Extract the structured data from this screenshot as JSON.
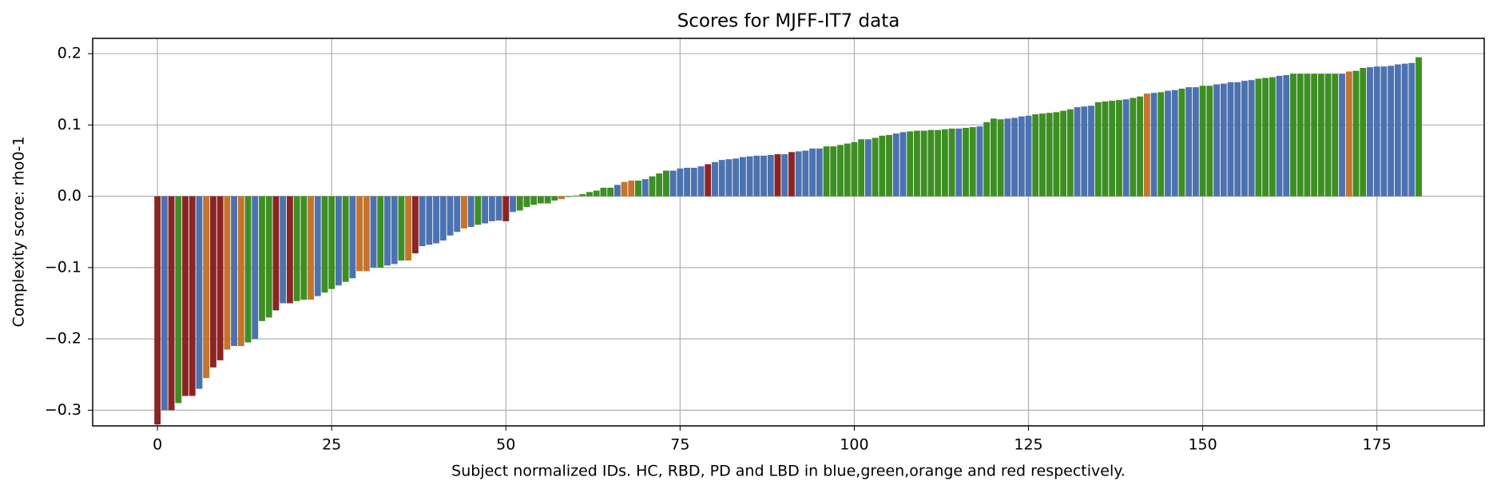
{
  "chart_data": {
    "type": "bar",
    "title": "Scores for MJFF-IT7 data",
    "xlabel": "Subject normalized IDs. HC, RBD, PD and LBD in blue,green,orange and red respectively.",
    "ylabel": "Complexity score: rho0-1",
    "x": [
      0,
      1,
      2,
      3,
      4,
      5,
      6,
      7,
      8,
      9,
      10,
      11,
      12,
      13,
      14,
      15,
      16,
      17,
      18,
      19,
      20,
      21,
      22,
      23,
      24,
      25,
      26,
      27,
      28,
      29,
      30,
      31,
      32,
      33,
      34,
      35,
      36,
      37,
      38,
      39,
      40,
      41,
      42,
      43,
      44,
      45,
      46,
      47,
      48,
      49,
      50,
      51,
      52,
      53,
      54,
      55,
      56,
      57,
      58,
      59,
      60,
      61,
      62,
      63,
      64,
      65,
      66,
      67,
      68,
      69,
      70,
      71,
      72,
      73,
      74,
      75,
      76,
      77,
      78,
      79,
      80,
      81,
      82,
      83,
      84,
      85,
      86,
      87,
      88,
      89,
      90,
      91,
      92,
      93,
      94,
      95,
      96,
      97,
      98,
      99,
      100,
      101,
      102,
      103,
      104,
      105,
      106,
      107,
      108,
      109,
      110,
      111,
      112,
      113,
      114,
      115,
      116,
      117,
      118,
      119,
      120,
      121,
      122,
      123,
      124,
      125,
      126,
      127,
      128,
      129,
      130,
      131,
      132,
      133,
      134,
      135,
      136,
      137,
      138,
      139,
      140,
      141,
      142,
      143,
      144,
      145,
      146,
      147,
      148,
      149,
      150,
      151,
      152,
      153,
      154,
      155,
      156,
      157,
      158,
      159,
      160,
      161,
      162,
      163,
      164,
      165,
      166,
      167,
      168,
      169,
      170,
      171,
      172,
      173,
      174,
      175,
      176,
      177,
      178,
      179,
      180,
      181
    ],
    "values": [
      -0.32,
      -0.3,
      -0.3,
      -0.29,
      -0.28,
      -0.28,
      -0.27,
      -0.255,
      -0.24,
      -0.23,
      -0.215,
      -0.21,
      -0.21,
      -0.205,
      -0.2,
      -0.175,
      -0.17,
      -0.16,
      -0.15,
      -0.15,
      -0.147,
      -0.145,
      -0.145,
      -0.14,
      -0.135,
      -0.13,
      -0.125,
      -0.12,
      -0.115,
      -0.105,
      -0.105,
      -0.1,
      -0.1,
      -0.097,
      -0.095,
      -0.09,
      -0.09,
      -0.08,
      -0.07,
      -0.068,
      -0.066,
      -0.062,
      -0.055,
      -0.05,
      -0.045,
      -0.043,
      -0.04,
      -0.038,
      -0.035,
      -0.034,
      -0.035,
      -0.022,
      -0.02,
      -0.015,
      -0.012,
      -0.01,
      -0.01,
      -0.006,
      -0.004,
      -0.001,
      0.001,
      0.003,
      0.006,
      0.008,
      0.012,
      0.012,
      0.016,
      0.02,
      0.022,
      0.022,
      0.024,
      0.028,
      0.032,
      0.036,
      0.036,
      0.039,
      0.04,
      0.04,
      0.042,
      0.045,
      0.048,
      0.051,
      0.052,
      0.053,
      0.055,
      0.056,
      0.057,
      0.057,
      0.058,
      0.059,
      0.059,
      0.062,
      0.063,
      0.064,
      0.067,
      0.067,
      0.07,
      0.07,
      0.072,
      0.074,
      0.076,
      0.08,
      0.08,
      0.082,
      0.085,
      0.086,
      0.088,
      0.09,
      0.091,
      0.092,
      0.092,
      0.093,
      0.093,
      0.094,
      0.095,
      0.095,
      0.096,
      0.097,
      0.098,
      0.104,
      0.109,
      0.108,
      0.109,
      0.11,
      0.112,
      0.113,
      0.115,
      0.116,
      0.117,
      0.118,
      0.12,
      0.122,
      0.125,
      0.126,
      0.127,
      0.132,
      0.133,
      0.134,
      0.135,
      0.136,
      0.138,
      0.14,
      0.144,
      0.145,
      0.146,
      0.148,
      0.149,
      0.151,
      0.153,
      0.153,
      0.155,
      0.155,
      0.157,
      0.158,
      0.16,
      0.16,
      0.162,
      0.163,
      0.165,
      0.166,
      0.167,
      0.169,
      0.17,
      0.172,
      0.172,
      0.172,
      0.172,
      0.172,
      0.172,
      0.172,
      0.172,
      0.175,
      0.176,
      0.18,
      0.181,
      0.182,
      0.182,
      0.183,
      0.185,
      0.186,
      0.187,
      0.195
    ],
    "colors": [
      "#8b2424",
      "#4c72b0",
      "#8b2424",
      "#3d8f23",
      "#8b2424",
      "#8b2424",
      "#4c72b0",
      "#c4742c",
      "#8b2424",
      "#8b2424",
      "#c4742c",
      "#4c72b0",
      "#c4742c",
      "#3d8f23",
      "#4c72b0",
      "#3d8f23",
      "#3d8f23",
      "#8b2424",
      "#4c72b0",
      "#8b2424",
      "#3d8f23",
      "#3d8f23",
      "#c4742c",
      "#4c72b0",
      "#3d8f23",
      "#3d8f23",
      "#4c72b0",
      "#3d8f23",
      "#4c72b0",
      "#c4742c",
      "#c4742c",
      "#4c72b0",
      "#3d8f23",
      "#4c72b0",
      "#4c72b0",
      "#3d8f23",
      "#c4742c",
      "#8b2424",
      "#4c72b0",
      "#4c72b0",
      "#4c72b0",
      "#4c72b0",
      "#4c72b0",
      "#4c72b0",
      "#c4742c",
      "#4c72b0",
      "#3d8f23",
      "#4c72b0",
      "#4c72b0",
      "#4c72b0",
      "#8b2424",
      "#4c72b0",
      "#3d8f23",
      "#3d8f23",
      "#3d8f23",
      "#3d8f23",
      "#3d8f23",
      "#3d8f23",
      "#c4742c",
      "#3d8f23",
      "#3d8f23",
      "#3d8f23",
      "#3d8f23",
      "#3d8f23",
      "#3d8f23",
      "#3d8f23",
      "#4c72b0",
      "#c4742c",
      "#c4742c",
      "#3d8f23",
      "#4c72b0",
      "#3d8f23",
      "#3d8f23",
      "#3d8f23",
      "#4c72b0",
      "#4c72b0",
      "#4c72b0",
      "#4c72b0",
      "#4c72b0",
      "#8b2424",
      "#4c72b0",
      "#4c72b0",
      "#4c72b0",
      "#4c72b0",
      "#4c72b0",
      "#4c72b0",
      "#4c72b0",
      "#4c72b0",
      "#4c72b0",
      "#8b2424",
      "#4c72b0",
      "#8b2424",
      "#4c72b0",
      "#4c72b0",
      "#4c72b0",
      "#4c72b0",
      "#3d8f23",
      "#3d8f23",
      "#3d8f23",
      "#3d8f23",
      "#3d8f23",
      "#3d8f23",
      "#4c72b0",
      "#3d8f23",
      "#3d8f23",
      "#3d8f23",
      "#4c72b0",
      "#4c72b0",
      "#3d8f23",
      "#3d8f23",
      "#3d8f23",
      "#3d8f23",
      "#3d8f23",
      "#3d8f23",
      "#3d8f23",
      "#4c72b0",
      "#3d8f23",
      "#3d8f23",
      "#4c72b0",
      "#3d8f23",
      "#3d8f23",
      "#3d8f23",
      "#4c72b0",
      "#4c72b0",
      "#4c72b0",
      "#4c72b0",
      "#3d8f23",
      "#3d8f23",
      "#3d8f23",
      "#3d8f23",
      "#3d8f23",
      "#3d8f23",
      "#4c72b0",
      "#4c72b0",
      "#4c72b0",
      "#3d8f23",
      "#3d8f23",
      "#3d8f23",
      "#3d8f23",
      "#4c72b0",
      "#3d8f23",
      "#3d8f23",
      "#c4742c",
      "#4c72b0",
      "#3d8f23",
      "#4c72b0",
      "#4c72b0",
      "#3d8f23",
      "#4c72b0",
      "#4c72b0",
      "#3d8f23",
      "#3d8f23",
      "#4c72b0",
      "#4c72b0",
      "#4c72b0",
      "#4c72b0",
      "#4c72b0",
      "#4c72b0",
      "#3d8f23",
      "#3d8f23",
      "#3d8f23",
      "#4c72b0",
      "#4c72b0",
      "#3d8f23",
      "#3d8f23",
      "#3d8f23",
      "#3d8f23",
      "#3d8f23",
      "#3d8f23",
      "#3d8f23",
      "#4c72b0",
      "#c4742c",
      "#3d8f23",
      "#3d8f23",
      "#4c72b0",
      "#4c72b0",
      "#4c72b0",
      "#4c72b0",
      "#4c72b0",
      "#4c72b0",
      "#4c72b0",
      "#3d8f23"
    ],
    "xlim": [
      -9.3,
      190.4
    ],
    "xticks": [
      0,
      25,
      50,
      75,
      100,
      125,
      150,
      175
    ],
    "ylim": [
      -0.322,
      0.2215
    ],
    "yticks": [
      {
        "value": -0.3,
        "label": "−0.3"
      },
      {
        "value": -0.2,
        "label": "−0.2"
      },
      {
        "value": -0.1,
        "label": "−0.1"
      },
      {
        "value": 0,
        "label": "0.0"
      },
      0.1,
      0.2
    ],
    "grid": true
  }
}
